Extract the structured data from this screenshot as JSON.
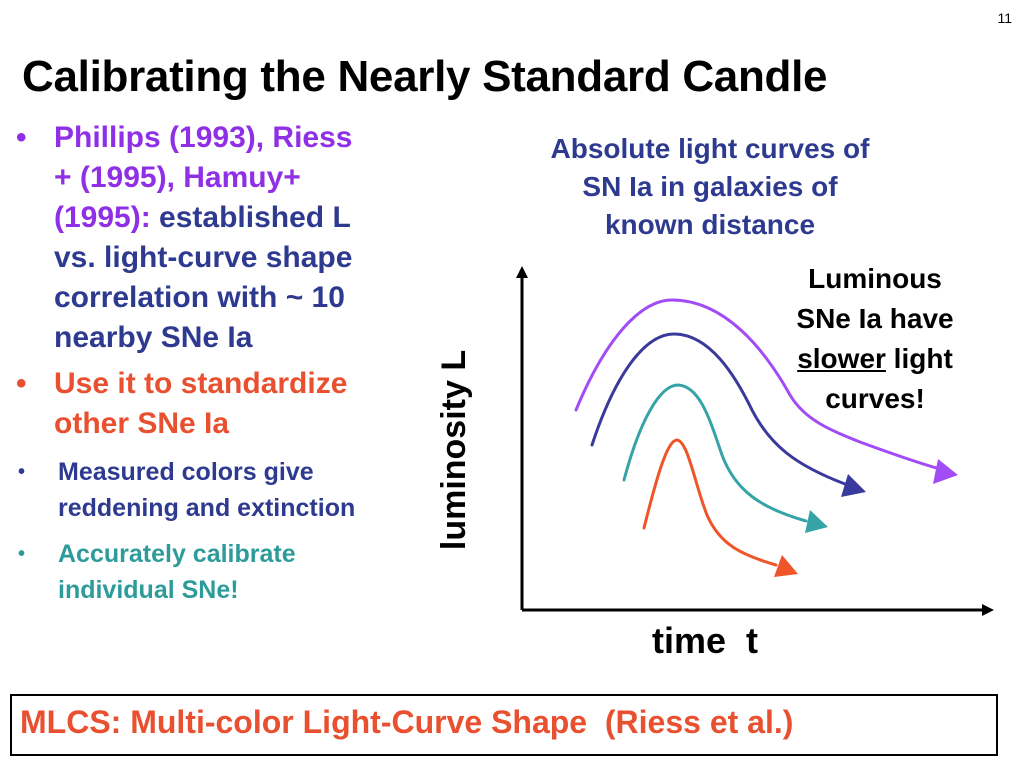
{
  "slide": {
    "page_number": "11",
    "title": "Calibrating the Nearly Standard Candle"
  },
  "bullets": {
    "b1_line1": "Phillips (1993), Riess",
    "b1_line2": "+ (1995), Hamuy+",
    "b1_line3_purple": "(1995): ",
    "b1_line3_navy": "established L",
    "b1_line4": "vs. light-curve shape",
    "b1_line5": "correlation with ~ 10",
    "b1_line6": "nearby SNe Ia",
    "b2_line1": "Use it to standardize",
    "b2_line2": "other SNe Ia",
    "b3_line1": "Measured colors give",
    "b3_line2": "reddening and extinction",
    "b4_line1": "Accurately calibrate",
    "b4_line2": "individual SNe!"
  },
  "diagram": {
    "caption_line1": "Absolute light curves of",
    "caption_line2": "SN Ia in galaxies of",
    "caption_line3": "known distance",
    "note_line1": "Luminous",
    "note_line2": "SNe Ia have",
    "note_underlined": "slower",
    "note_line3_rest": " light",
    "note_line4": "curves!",
    "y_axis_label": "luminosity  L",
    "x_axis_label": "time  t",
    "curve_colors": [
      "#a24cf5",
      "#3a3a9c",
      "#36a3a6",
      "#f0552a"
    ]
  },
  "footer": {
    "text": "MLCS: Multi-color Light-Curve Shape  (Riess et al.)"
  }
}
